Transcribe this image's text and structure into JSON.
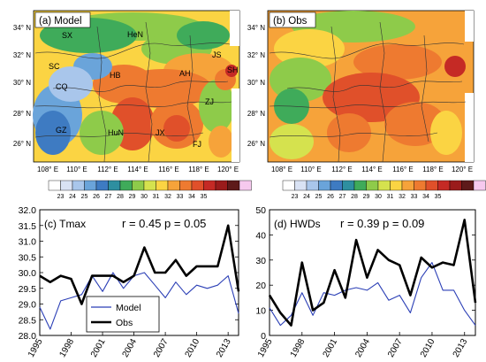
{
  "colors": {
    "model": "#2b3fb6",
    "obs": "#000000",
    "scale": [
      "#ffffff",
      "#d9e2f4",
      "#a9c6eb",
      "#6aa4da",
      "#3e7bc2",
      "#2e8fa0",
      "#3fab5a",
      "#8ecb4a",
      "#d5e24e",
      "#fbd443",
      "#f6a33a",
      "#ee7a30",
      "#e0502a",
      "#c52a25",
      "#9a1b1b",
      "#5e1a1a",
      "#f6c9ee"
    ]
  },
  "maps": [
    {
      "title": "(a) Model",
      "lon_ticks": [
        "108° E",
        "110° E",
        "112° E",
        "114° E",
        "116° E",
        "118° E",
        "120° E"
      ],
      "lat_ticks": [
        "34° N",
        "32° N",
        "30° N",
        "28° N",
        "26° N"
      ],
      "province_labels": [
        "SX",
        "HeN",
        "SC",
        "HB",
        "AH",
        "JS",
        "SH",
        "CQ",
        "ZJ",
        "GZ",
        "HuN",
        "JX",
        "FJ"
      ],
      "colorbar_ticks": [
        "23",
        "24",
        "25",
        "26",
        "27",
        "28",
        "29",
        "30",
        "31",
        "32",
        "33",
        "34",
        "35"
      ]
    },
    {
      "title": "(b) Obs",
      "lon_ticks": [
        "108° E",
        "110° E",
        "112° E",
        "114° E",
        "116° E",
        "118° E",
        "120° E"
      ],
      "lat_ticks": [
        "34° N",
        "32° N",
        "30° N",
        "28° N",
        "26° N"
      ],
      "colorbar_ticks": [
        "23",
        "24",
        "25",
        "26",
        "27",
        "28",
        "29",
        "30",
        "31",
        "32",
        "33",
        "34",
        "35"
      ]
    }
  ],
  "chart_data": [
    {
      "type": "line",
      "title": "(c) Tmax",
      "stats": "r = 0.45 p = 0.05",
      "x": [
        1995,
        1996,
        1997,
        1998,
        1999,
        2000,
        2001,
        2002,
        2003,
        2004,
        2005,
        2006,
        2007,
        2008,
        2009,
        2010,
        2011,
        2012,
        2013,
        2014
      ],
      "x_ticks": [
        "1995",
        "1998",
        "2001",
        "2004",
        "2007",
        "2010",
        "2013"
      ],
      "ylim": [
        28.0,
        32.0
      ],
      "y_ticks": [
        "28.0",
        "28.5",
        "29.0",
        "29.5",
        "30.0",
        "30.5",
        "31.0",
        "31.5",
        "32.0"
      ],
      "legend": "bottom-left",
      "series": [
        {
          "name": "Model",
          "values": [
            28.9,
            28.2,
            29.1,
            29.2,
            29.3,
            29.9,
            29.4,
            30.0,
            29.5,
            29.9,
            30.0,
            29.6,
            29.2,
            29.7,
            29.3,
            29.6,
            29.5,
            29.6,
            29.9,
            28.7
          ]
        },
        {
          "name": "Obs",
          "values": [
            29.9,
            29.7,
            29.9,
            29.8,
            29.0,
            29.9,
            29.9,
            29.9,
            29.7,
            29.9,
            30.8,
            30.0,
            30.0,
            30.4,
            29.9,
            30.2,
            30.2,
            30.2,
            31.5,
            29.4
          ]
        }
      ]
    },
    {
      "type": "line",
      "title": "(d) HWDs",
      "stats": "r = 0.39 p = 0.09",
      "x": [
        1995,
        1996,
        1997,
        1998,
        1999,
        2000,
        2001,
        2002,
        2003,
        2004,
        2005,
        2006,
        2007,
        2008,
        2009,
        2010,
        2011,
        2012,
        2013,
        2014
      ],
      "x_ticks": [
        "1995",
        "1998",
        "2001",
        "2004",
        "2007",
        "2010",
        "2013"
      ],
      "ylim": [
        0,
        50
      ],
      "y_ticks": [
        "0",
        "10",
        "20",
        "30",
        "40",
        "50"
      ],
      "series": [
        {
          "name": "Model",
          "values": [
            11,
            4,
            8,
            17,
            8,
            17,
            16,
            18,
            19,
            18,
            21,
            14,
            16,
            9,
            23,
            29,
            18,
            18,
            10,
            4
          ]
        },
        {
          "name": "Obs",
          "values": [
            16,
            9,
            4,
            29,
            10,
            13,
            26,
            15,
            38,
            23,
            34,
            30,
            28,
            16,
            31,
            27,
            29,
            28,
            46,
            13
          ]
        }
      ]
    }
  ]
}
